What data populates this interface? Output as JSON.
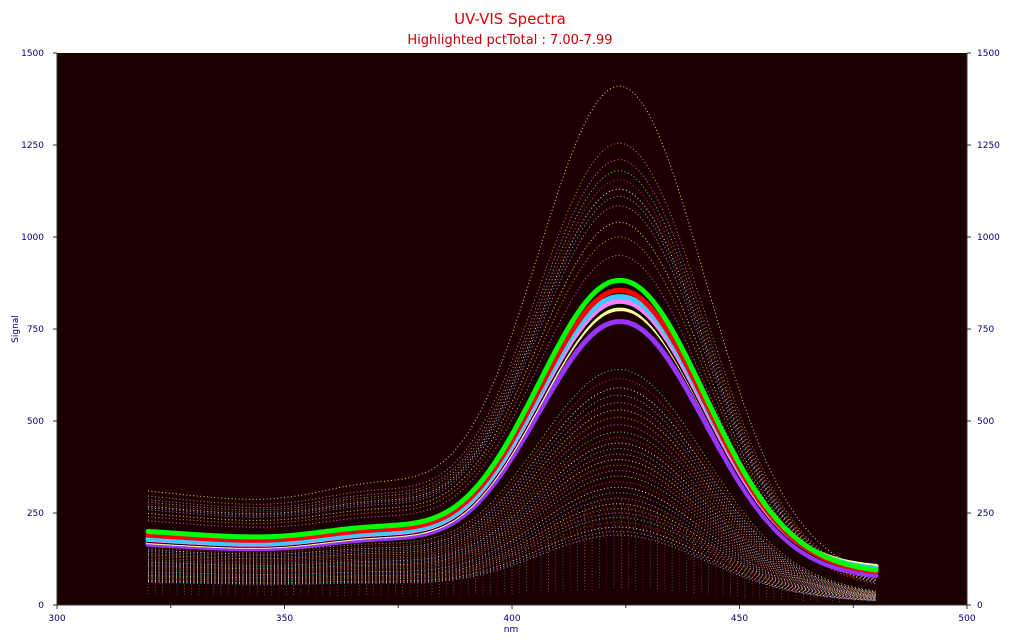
{
  "chart_data": {
    "type": "line",
    "title": "UV-VIS Spectra",
    "subtitle": "Highlighted pctTotal : 7.00-7.99",
    "xlabel": "nm",
    "ylabel": "Signal",
    "xlim": [
      300,
      500
    ],
    "ylim": [
      0,
      1500
    ],
    "x_ticks": [
      "300",
      "350",
      "400",
      "450",
      "500"
    ],
    "y_ticks": [
      "0",
      "250",
      "500",
      "750",
      "1000",
      "1250",
      "1500"
    ],
    "x_range_data": [
      320,
      480
    ],
    "peak_x": 424,
    "grid": false,
    "background_plot": "#1a0000",
    "highlighted_series": [
      {
        "color": "#00ff00",
        "peak": 882,
        "start": 200,
        "end": 95
      },
      {
        "color": "#ff0000",
        "peak": 855,
        "start": 190,
        "end": 90
      },
      {
        "color": "#40c8ff",
        "peak": 838,
        "start": 180,
        "end": 100
      },
      {
        "color": "#ff80ff",
        "peak": 825,
        "start": 178,
        "end": 95
      },
      {
        "color": "#000000",
        "peak": 815,
        "start": 175,
        "end": 92
      },
      {
        "color": "#ffff90",
        "peak": 805,
        "start": 172,
        "end": 105
      },
      {
        "color": "#9933ff",
        "peak": 770,
        "start": 165,
        "end": 80
      }
    ],
    "background_series": {
      "peaks": [
        1410,
        1255,
        1210,
        1180,
        1155,
        1130,
        1110,
        1085,
        1040,
        1000,
        950,
        640,
        615,
        590,
        570,
        550,
        530,
        510,
        490,
        470,
        455,
        440,
        425,
        410,
        395,
        380,
        365,
        350,
        335,
        320,
        305,
        290,
        275,
        262,
        250,
        238,
        225,
        212,
        200,
        190
      ],
      "colors": [
        "#ffff66",
        "#ff9933",
        "#ff66ff",
        "#66ff66",
        "#ff3333",
        "#ffffff",
        "#66ccff",
        "#cc99ff"
      ]
    }
  }
}
